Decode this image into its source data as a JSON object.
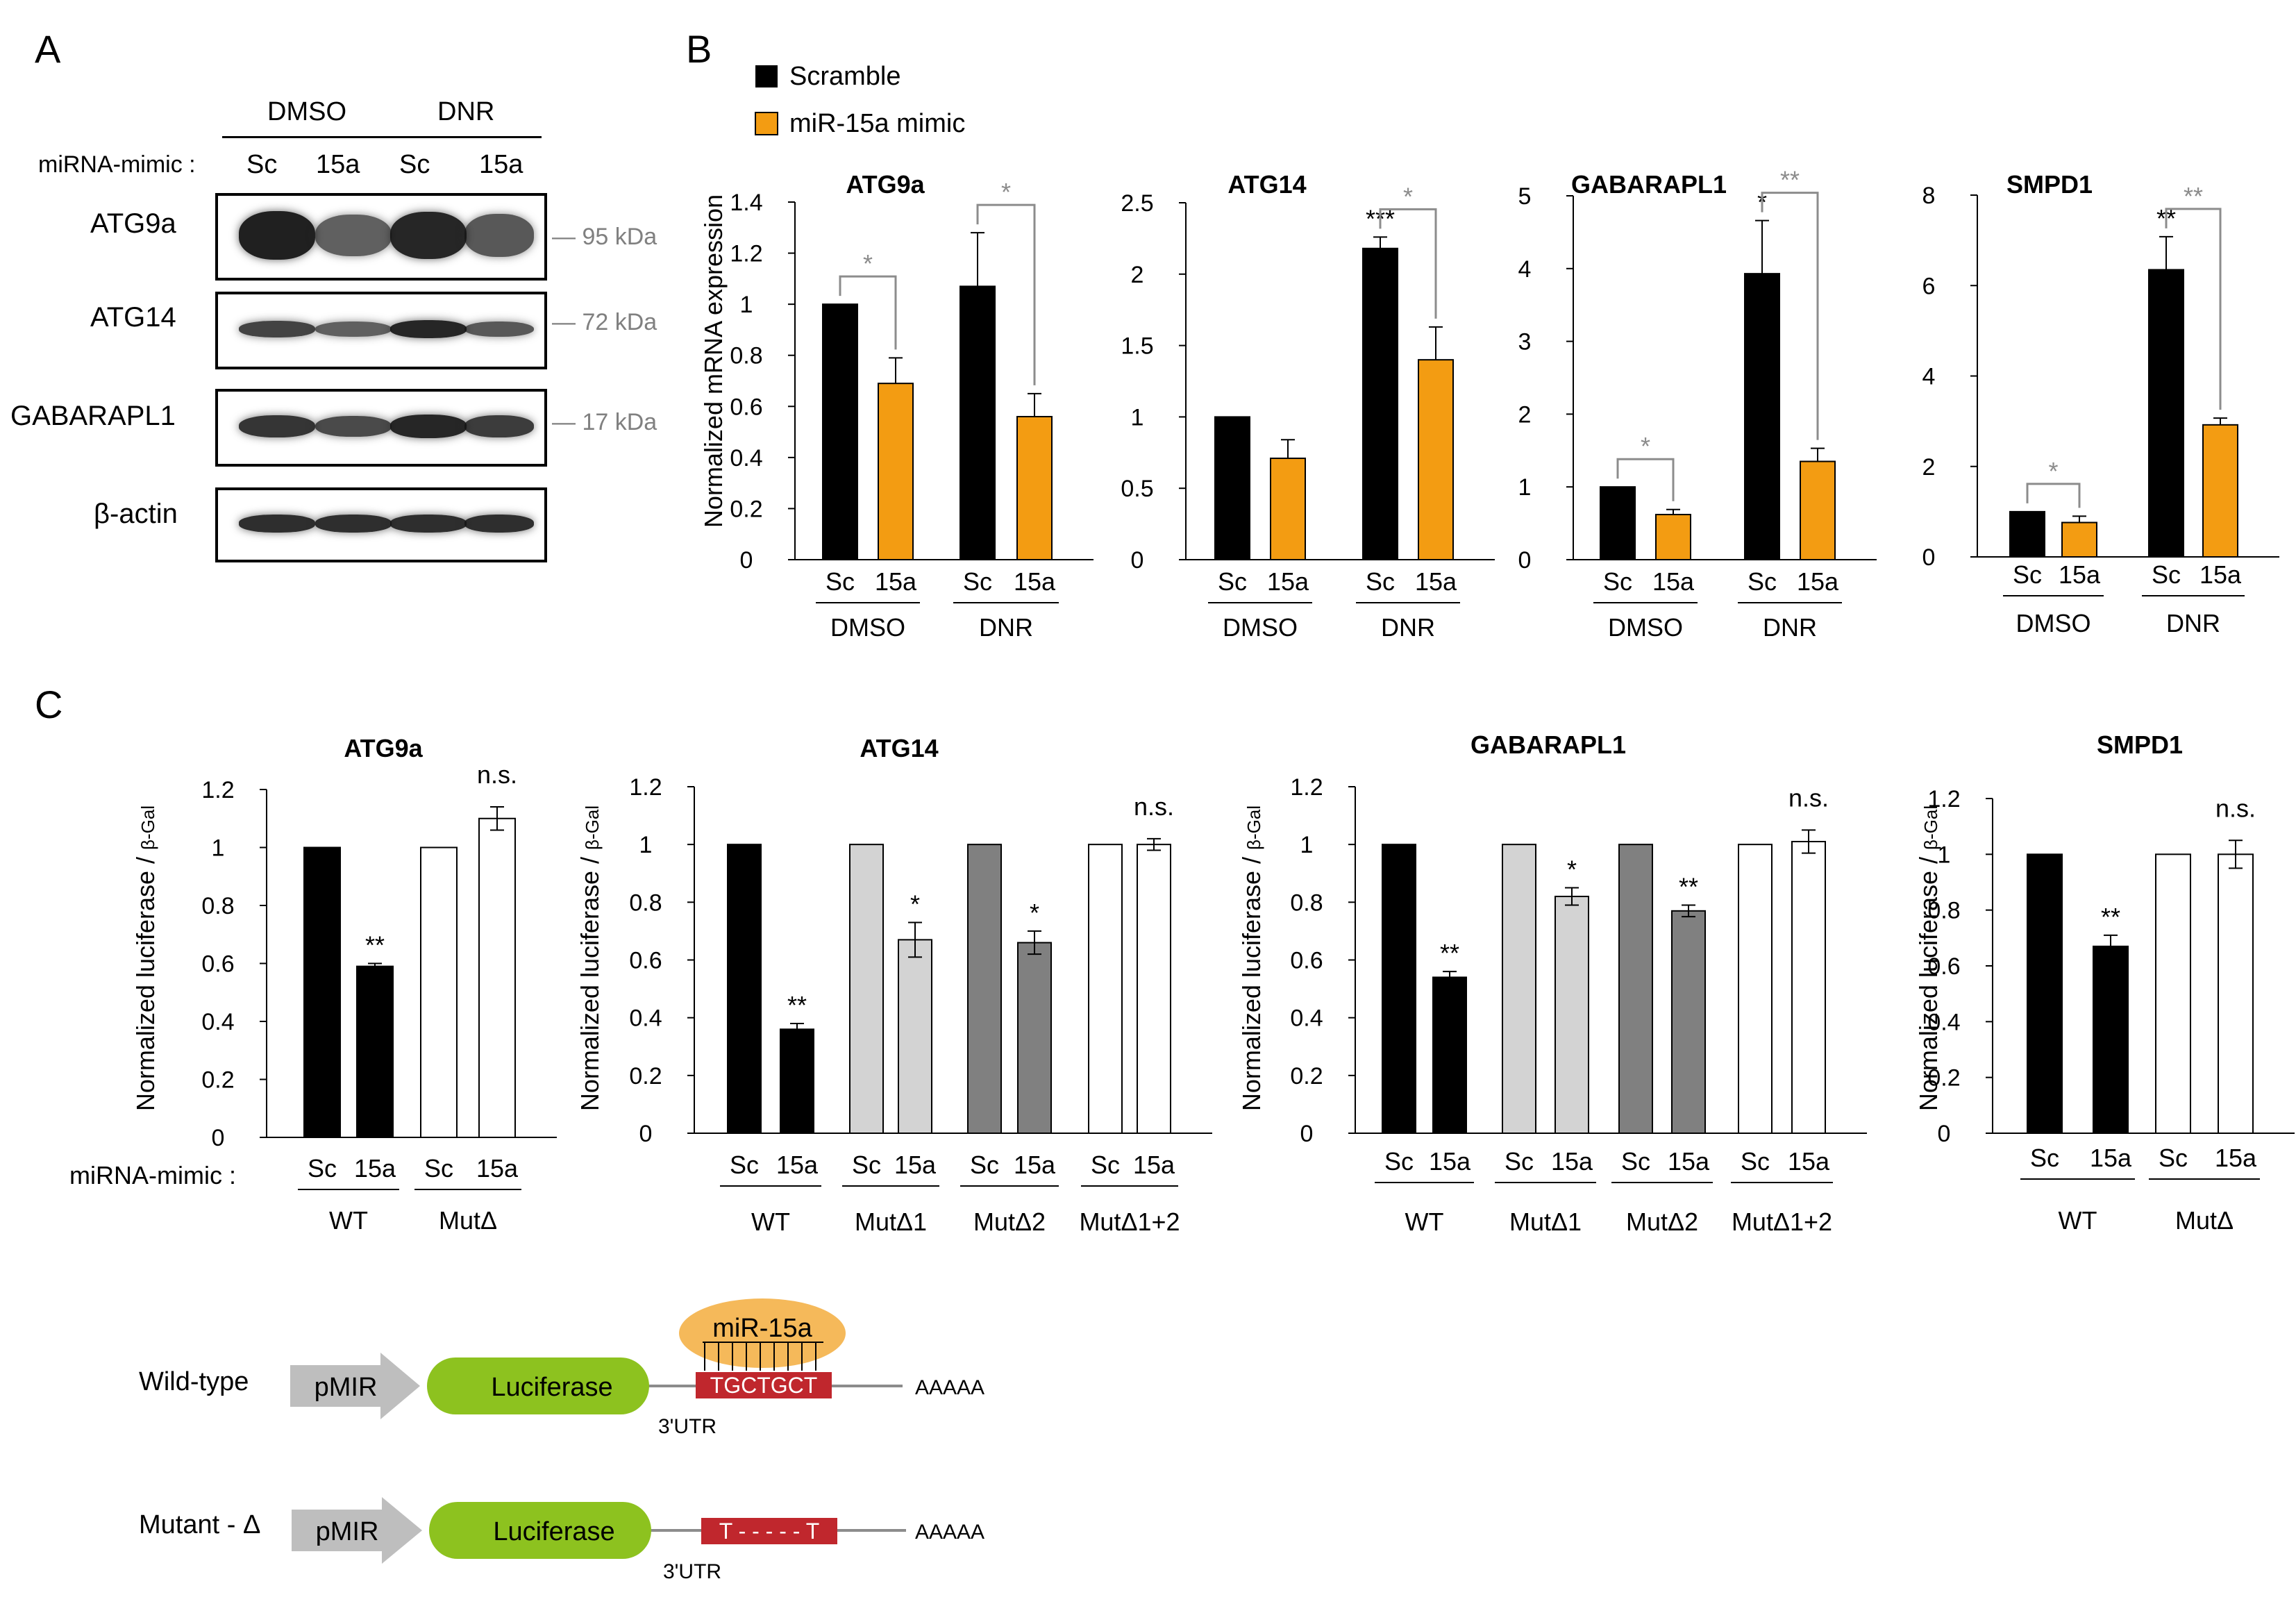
{
  "panelA": {
    "letter": "A",
    "group_labels": [
      "DMSO",
      "DNR"
    ],
    "mimic_label": "miRNA-mimic :",
    "lane_labels": [
      "Sc",
      "15a",
      "Sc",
      "15a"
    ],
    "rows": [
      {
        "name": "ATG9a",
        "marker": "— 95 kDa",
        "intensity": [
          1.0,
          0.55,
          0.95,
          0.6
        ]
      },
      {
        "name": "ATG14",
        "marker": "— 72 kDa",
        "intensity": [
          0.75,
          0.55,
          0.95,
          0.6
        ]
      },
      {
        "name": "GABARAPL1",
        "marker": "— 17 kDa",
        "intensity": [
          0.85,
          0.7,
          0.95,
          0.8
        ]
      },
      {
        "name": "β-actin",
        "marker": "",
        "intensity": [
          0.9,
          0.9,
          0.9,
          0.9
        ]
      }
    ]
  },
  "panelB": {
    "letter": "B",
    "legend": [
      "Scramble",
      "miR-15a mimic"
    ],
    "ylabel": "Normalized mRNA expression",
    "xlabels": [
      "Sc",
      "15a",
      "Sc",
      "15a"
    ],
    "groups": [
      "DMSO",
      "DNR"
    ]
  },
  "panelC": {
    "letter": "C",
    "ylabel_main": "Normalized luciferase / ",
    "ylabel_sub": "β-Gal",
    "mimic_label": "miRNA-mimic :"
  },
  "colors": {
    "scramble": "#000000",
    "mimic": "#F39C12",
    "light_gray": "#D3D3D3",
    "dark_gray": "#808080",
    "open": "#FFFFFF",
    "sig_gray": "#8C8C8C",
    "luciferase": "#8DC21F",
    "mir": "#F5B95A",
    "utr": "#C0272D",
    "pmir": "#BEBEBE"
  },
  "chart_data": [
    {
      "id": "B-ATG9a",
      "type": "bar",
      "title": "ATG9a",
      "ylim": [
        0,
        1.4
      ],
      "yticks": [
        "0",
        "0.2",
        "0.4",
        "0.6",
        "0.8",
        "1",
        "1.2",
        "1.4"
      ],
      "categories": [
        "DMSO Sc",
        "DMSO 15a",
        "DNR Sc",
        "DNR 15a"
      ],
      "values": [
        1.0,
        0.69,
        1.07,
        0.56
      ],
      "errors": [
        0,
        0.1,
        0.21,
        0.09
      ],
      "annotations": [
        {
          "text": "*",
          "pair": "DMSO"
        },
        {
          "text": "*",
          "pair": "DNR"
        }
      ]
    },
    {
      "id": "B-ATG14",
      "type": "bar",
      "title": "ATG14",
      "ylim": [
        0,
        2.5
      ],
      "yticks": [
        "0",
        "0.5",
        "1",
        "1.5",
        "2",
        "2.5"
      ],
      "categories": [
        "DMSO Sc",
        "DMSO 15a",
        "DNR Sc",
        "DNR 15a"
      ],
      "values": [
        1.0,
        0.71,
        2.18,
        1.4
      ],
      "errors": [
        0,
        0.13,
        0.08,
        0.23
      ],
      "annotations": [
        {
          "text": "***",
          "bar": "DNR Sc"
        },
        {
          "text": "*",
          "pair": "DNR"
        }
      ]
    },
    {
      "id": "B-GABARAPL1",
      "type": "bar",
      "title": "GABARAPL1",
      "ylim": [
        0,
        5
      ],
      "yticks": [
        "0",
        "1",
        "2",
        "3",
        "4",
        "5"
      ],
      "categories": [
        "DMSO Sc",
        "DMSO 15a",
        "DNR Sc",
        "DNR 15a"
      ],
      "values": [
        1.0,
        0.62,
        3.93,
        1.35
      ],
      "errors": [
        0,
        0.07,
        0.73,
        0.18
      ],
      "annotations": [
        {
          "text": "*",
          "pair": "DMSO"
        },
        {
          "text": "*",
          "bar": "DNR Sc"
        },
        {
          "text": "**",
          "pair": "DNR"
        }
      ]
    },
    {
      "id": "B-SMPD1",
      "type": "bar",
      "title": "SMPD1",
      "ylim": [
        0,
        8
      ],
      "yticks": [
        "0",
        "2",
        "4",
        "6",
        "8"
      ],
      "categories": [
        "DMSO Sc",
        "DMSO 15a",
        "DNR Sc",
        "DNR 15a"
      ],
      "values": [
        1.0,
        0.76,
        6.35,
        2.92
      ],
      "errors": [
        0,
        0.14,
        0.73,
        0.15
      ],
      "annotations": [
        {
          "text": "*",
          "pair": "DMSO"
        },
        {
          "text": "**",
          "bar": "DNR Sc"
        },
        {
          "text": "**",
          "pair": "DNR"
        }
      ]
    },
    {
      "id": "C-ATG9a",
      "type": "bar",
      "title": "ATG9a",
      "ylim": [
        0,
        1.2
      ],
      "yticks": [
        "0",
        "0.2",
        "0.4",
        "0.6",
        "0.8",
        "1",
        "1.2"
      ],
      "groups": [
        "WT",
        "MutΔ"
      ],
      "categories": [
        "WT Sc",
        "WT 15a",
        "MutΔ Sc",
        "MutΔ 15a"
      ],
      "values": [
        1.0,
        0.59,
        1.0,
        1.1
      ],
      "errors": [
        0,
        0.01,
        0,
        0.04
      ],
      "annotations": [
        {
          "text": "**",
          "bar": "WT 15a"
        },
        {
          "text": "n.s.",
          "bar": "MutΔ 15a"
        }
      ]
    },
    {
      "id": "C-ATG14",
      "type": "bar",
      "title": "ATG14",
      "ylim": [
        0,
        1.2
      ],
      "yticks": [
        "0",
        "0.2",
        "0.4",
        "0.6",
        "0.8",
        "1",
        "1.2"
      ],
      "groups": [
        "WT",
        "MutΔ1",
        "MutΔ2",
        "MutΔ1+2"
      ],
      "categories": [
        "WT Sc",
        "WT 15a",
        "MutΔ1 Sc",
        "MutΔ1 15a",
        "MutΔ2 Sc",
        "MutΔ2 15a",
        "MutΔ1+2 Sc",
        "MutΔ1+2 15a"
      ],
      "values": [
        1.0,
        0.36,
        1.0,
        0.67,
        1.0,
        0.66,
        1.0,
        1.0
      ],
      "errors": [
        0,
        0.02,
        0,
        0.06,
        0,
        0.04,
        0,
        0.02
      ],
      "annotations": [
        {
          "text": "**",
          "bar": "WT 15a"
        },
        {
          "text": "*",
          "bar": "MutΔ1 15a"
        },
        {
          "text": "*",
          "bar": "MutΔ2 15a"
        },
        {
          "text": "n.s.",
          "bar": "MutΔ1+2 15a"
        }
      ]
    },
    {
      "id": "C-GABARAPL1",
      "type": "bar",
      "title": "GABARAPL1",
      "ylim": [
        0,
        1.2
      ],
      "yticks": [
        "0",
        "0.2",
        "0.4",
        "0.6",
        "0.8",
        "1",
        "1.2"
      ],
      "groups": [
        "WT",
        "MutΔ1",
        "MutΔ2",
        "MutΔ1+2"
      ],
      "categories": [
        "WT Sc",
        "WT 15a",
        "MutΔ1 Sc",
        "MutΔ1 15a",
        "MutΔ2 Sc",
        "MutΔ2 15a",
        "MutΔ1+2 Sc",
        "MutΔ1+2 15a"
      ],
      "values": [
        1.0,
        0.54,
        1.0,
        0.82,
        1.0,
        0.77,
        1.0,
        1.01
      ],
      "errors": [
        0,
        0.02,
        0,
        0.03,
        0,
        0.02,
        0,
        0.04
      ],
      "annotations": [
        {
          "text": "**",
          "bar": "WT 15a"
        },
        {
          "text": "*",
          "bar": "MutΔ1 15a"
        },
        {
          "text": "**",
          "bar": "MutΔ2 15a"
        },
        {
          "text": "n.s.",
          "bar": "MutΔ1+2 15a"
        }
      ]
    },
    {
      "id": "C-SMPD1",
      "type": "bar",
      "title": "SMPD1",
      "ylim": [
        0,
        1.2
      ],
      "yticks": [
        "0",
        "0.2",
        "0.4",
        "0.6",
        "0.8",
        "1",
        "1.2"
      ],
      "groups": [
        "WT",
        "MutΔ"
      ],
      "categories": [
        "WT Sc",
        "WT 15a",
        "MutΔ Sc",
        "MutΔ 15a"
      ],
      "values": [
        1.0,
        0.67,
        1.0,
        1.0
      ],
      "errors": [
        0,
        0.04,
        0,
        0.05
      ],
      "annotations": [
        {
          "text": "**",
          "bar": "WT 15a"
        },
        {
          "text": "n.s.",
          "bar": "MutΔ 15a"
        }
      ]
    }
  ],
  "diagram": {
    "rows": [
      {
        "label": "Wild-type",
        "pmir": "pMIR",
        "luciferase": "Luciferase",
        "mir": "miR-15a",
        "utr_seq": "TGCTGCT",
        "utr_label": "3'UTR",
        "polyA": "AAAAA"
      },
      {
        "label": "Mutant - Δ",
        "pmir": "pMIR",
        "luciferase": "Luciferase",
        "utr_seq": "T - - - - - T",
        "utr_label": "3'UTR",
        "polyA": "AAAAA"
      }
    ]
  }
}
